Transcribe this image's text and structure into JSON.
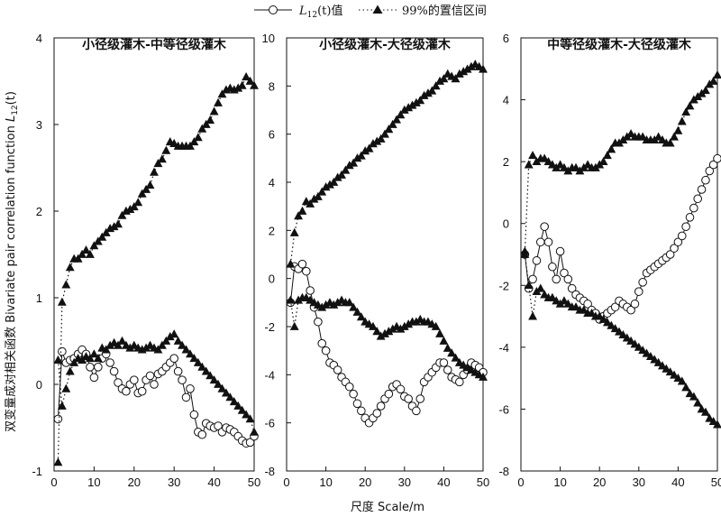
{
  "legend": {
    "observed_label": "L12(t)值",
    "ci_label": "99%的置信区间"
  },
  "x_axis_label": "尺度 Scale/m",
  "y_axis_label": "双变量成对相关函数 Bivariate pair correlation function L12(t)",
  "chart_data": [
    {
      "type": "line",
      "title": "小径级灌木-中等径级灌木",
      "xlim": [
        0,
        50
      ],
      "ylim": [
        -1,
        4
      ],
      "x_ticks": [
        0,
        10,
        20,
        30,
        40,
        50
      ],
      "y_ticks": [
        -1,
        0,
        1,
        2,
        3,
        4
      ],
      "grid": false,
      "series": [
        {
          "name": "L12(t)值",
          "x": [
            1,
            2,
            3,
            4,
            5,
            6,
            7,
            8,
            9,
            10,
            11,
            12,
            13,
            14,
            15,
            16,
            17,
            18,
            19,
            20,
            21,
            22,
            23,
            24,
            25,
            26,
            27,
            28,
            29,
            30,
            31,
            32,
            33,
            34,
            35,
            36,
            37,
            38,
            39,
            40,
            41,
            42,
            43,
            44,
            45,
            46,
            47,
            48,
            49,
            50
          ],
          "y": [
            -0.4,
            0.38,
            0.25,
            0.28,
            0.3,
            0.35,
            0.4,
            0.35,
            0.2,
            0.08,
            0.2,
            0.3,
            0.35,
            0.25,
            0.15,
            0.02,
            -0.05,
            -0.08,
            0.0,
            0.05,
            -0.1,
            -0.08,
            0.05,
            0.1,
            0.0,
            0.12,
            0.15,
            0.2,
            0.25,
            0.3,
            0.15,
            0.05,
            -0.15,
            -0.05,
            -0.35,
            -0.55,
            -0.58,
            -0.45,
            -0.48,
            -0.5,
            -0.48,
            -0.55,
            -0.5,
            -0.52,
            -0.55,
            -0.6,
            -0.65,
            -0.68,
            -0.67,
            -0.6
          ]
        },
        {
          "name": "99%的置信区间 upper",
          "x": [
            1,
            2,
            3,
            4,
            5,
            6,
            7,
            8,
            9,
            10,
            11,
            12,
            13,
            14,
            15,
            16,
            17,
            18,
            19,
            20,
            21,
            22,
            23,
            24,
            25,
            26,
            27,
            28,
            29,
            30,
            31,
            32,
            33,
            34,
            35,
            36,
            37,
            38,
            39,
            40,
            41,
            42,
            43,
            44,
            45,
            46,
            47,
            48,
            49,
            50
          ],
          "y": [
            -0.9,
            0.95,
            1.15,
            1.35,
            1.45,
            1.45,
            1.5,
            1.55,
            1.5,
            1.6,
            1.65,
            1.7,
            1.75,
            1.8,
            1.82,
            1.85,
            1.95,
            2.0,
            2.02,
            2.05,
            2.1,
            2.2,
            2.25,
            2.3,
            2.45,
            2.55,
            2.6,
            2.7,
            2.8,
            2.78,
            2.75,
            2.75,
            2.75,
            2.75,
            2.8,
            2.85,
            2.95,
            3.0,
            3.05,
            3.15,
            3.25,
            3.35,
            3.4,
            3.42,
            3.4,
            3.42,
            3.45,
            3.55,
            3.5,
            3.45
          ]
        },
        {
          "name": "99%的置信区间 lower",
          "x": [
            1,
            2,
            3,
            4,
            5,
            6,
            7,
            8,
            9,
            10,
            11,
            12,
            13,
            14,
            15,
            16,
            17,
            18,
            19,
            20,
            21,
            22,
            23,
            24,
            25,
            26,
            27,
            28,
            29,
            30,
            31,
            32,
            33,
            34,
            35,
            36,
            37,
            38,
            39,
            40,
            41,
            42,
            43,
            44,
            45,
            46,
            47,
            48,
            49,
            50
          ],
          "y": [
            0.28,
            -0.25,
            -0.05,
            0.15,
            0.25,
            0.3,
            0.28,
            0.32,
            0.3,
            0.35,
            0.3,
            0.42,
            0.4,
            0.45,
            0.48,
            0.45,
            0.5,
            0.45,
            0.42,
            0.45,
            0.42,
            0.4,
            0.42,
            0.45,
            0.42,
            0.4,
            0.45,
            0.5,
            0.55,
            0.58,
            0.5,
            0.45,
            0.4,
            0.35,
            0.3,
            0.25,
            0.2,
            0.15,
            0.1,
            0.05,
            0.0,
            -0.05,
            -0.1,
            -0.15,
            -0.2,
            -0.25,
            -0.3,
            -0.35,
            -0.4,
            -0.55
          ]
        }
      ]
    },
    {
      "type": "line",
      "title": "小径级灌木-大径级灌木",
      "xlim": [
        0,
        50
      ],
      "ylim": [
        -8,
        10
      ],
      "x_ticks": [
        0,
        10,
        20,
        30,
        40,
        50
      ],
      "y_ticks": [
        -8,
        -6,
        -4,
        -2,
        0,
        2,
        4,
        6,
        8,
        10
      ],
      "grid": false,
      "series": [
        {
          "name": "L12(t)值",
          "x": [
            1,
            2,
            3,
            4,
            5,
            6,
            7,
            8,
            9,
            10,
            11,
            12,
            13,
            14,
            15,
            16,
            17,
            18,
            19,
            20,
            21,
            22,
            23,
            24,
            25,
            26,
            27,
            28,
            29,
            30,
            31,
            32,
            33,
            34,
            35,
            36,
            37,
            38,
            39,
            40,
            41,
            42,
            43,
            44,
            45,
            46,
            47,
            48,
            49,
            50
          ],
          "y": [
            -1.0,
            0.5,
            0.4,
            0.6,
            0.3,
            -0.5,
            -1.2,
            -1.8,
            -2.7,
            -3.0,
            -3.5,
            -3.6,
            -3.8,
            -4.1,
            -4.3,
            -4.5,
            -4.8,
            -5.2,
            -5.5,
            -5.8,
            -6.0,
            -5.8,
            -5.6,
            -5.3,
            -5.0,
            -4.8,
            -4.5,
            -4.4,
            -4.6,
            -4.9,
            -5.0,
            -5.3,
            -5.5,
            -5.0,
            -4.3,
            -4.1,
            -3.9,
            -3.7,
            -3.5,
            -3.5,
            -3.8,
            -4.1,
            -4.2,
            -4.3,
            -4.0,
            -3.8,
            -3.5,
            -3.6,
            -3.7,
            -3.9
          ]
        },
        {
          "name": "99%的置信区间 upper",
          "x": [
            1,
            2,
            3,
            4,
            5,
            6,
            7,
            8,
            9,
            10,
            11,
            12,
            13,
            14,
            15,
            16,
            17,
            18,
            19,
            20,
            21,
            22,
            23,
            24,
            25,
            26,
            27,
            28,
            29,
            30,
            31,
            32,
            33,
            34,
            35,
            36,
            37,
            38,
            39,
            40,
            41,
            42,
            43,
            44,
            45,
            46,
            47,
            48,
            49,
            50
          ],
          "y": [
            0.6,
            1.9,
            2.6,
            2.8,
            3.2,
            3.1,
            3.3,
            3.4,
            3.6,
            3.8,
            3.9,
            4.0,
            4.2,
            4.3,
            4.5,
            4.7,
            4.8,
            5.0,
            5.1,
            5.3,
            5.4,
            5.6,
            5.7,
            5.8,
            6.0,
            6.2,
            6.4,
            6.6,
            6.8,
            7.0,
            7.1,
            7.2,
            7.3,
            7.4,
            7.6,
            7.7,
            7.8,
            8.0,
            8.2,
            8.3,
            8.5,
            8.4,
            8.3,
            8.5,
            8.6,
            8.7,
            8.8,
            8.9,
            8.8,
            8.7
          ]
        },
        {
          "name": "99%的置信区间 lower",
          "x": [
            1,
            2,
            3,
            4,
            5,
            6,
            7,
            8,
            9,
            10,
            11,
            12,
            13,
            14,
            15,
            16,
            17,
            18,
            19,
            20,
            21,
            22,
            23,
            24,
            25,
            26,
            27,
            28,
            29,
            30,
            31,
            32,
            33,
            34,
            35,
            36,
            37,
            38,
            39,
            40,
            41,
            42,
            43,
            44,
            45,
            46,
            47,
            48,
            49,
            50
          ],
          "y": [
            -0.9,
            -2.0,
            -0.9,
            -0.8,
            -0.8,
            -0.9,
            -1.0,
            -1.1,
            -1.2,
            -1.1,
            -1.0,
            -1.1,
            -1.0,
            -0.9,
            -1.0,
            -1.0,
            -1.2,
            -1.4,
            -1.6,
            -1.8,
            -1.9,
            -2.0,
            -2.2,
            -2.4,
            -2.3,
            -2.2,
            -2.1,
            -2.0,
            -2.1,
            -2.0,
            -1.9,
            -1.8,
            -1.8,
            -1.7,
            -1.8,
            -1.8,
            -1.9,
            -2.0,
            -2.3,
            -2.6,
            -2.9,
            -3.1,
            -3.3,
            -3.5,
            -3.6,
            -3.7,
            -3.8,
            -3.9,
            -4.0,
            -4.1
          ]
        }
      ]
    },
    {
      "type": "line",
      "title": "中等径级灌木-大径级灌木",
      "xlim": [
        0,
        50
      ],
      "ylim": [
        -8,
        6
      ],
      "x_ticks": [
        0,
        10,
        20,
        30,
        40,
        50
      ],
      "y_ticks": [
        -8,
        -6,
        -4,
        -2,
        0,
        2,
        4,
        6
      ],
      "grid": false,
      "series": [
        {
          "name": "L12(t)值",
          "x": [
            1,
            2,
            3,
            4,
            5,
            6,
            7,
            8,
            9,
            10,
            11,
            12,
            13,
            14,
            15,
            16,
            17,
            18,
            19,
            20,
            21,
            22,
            23,
            24,
            25,
            26,
            27,
            28,
            29,
            30,
            31,
            32,
            33,
            34,
            35,
            36,
            37,
            38,
            39,
            40,
            41,
            42,
            43,
            44,
            45,
            46,
            47,
            48,
            49,
            50
          ],
          "y": [
            -1.0,
            -2.1,
            -1.8,
            -1.2,
            -0.6,
            -0.1,
            -0.6,
            -1.4,
            -1.8,
            -0.9,
            -1.6,
            -1.8,
            -2.1,
            -2.3,
            -2.4,
            -2.5,
            -2.6,
            -2.8,
            -2.9,
            -3.1,
            -3.0,
            -2.9,
            -2.8,
            -2.7,
            -2.5,
            -2.6,
            -2.7,
            -2.8,
            -2.6,
            -2.2,
            -1.9,
            -1.6,
            -1.5,
            -1.4,
            -1.3,
            -1.2,
            -1.1,
            -1.0,
            -0.8,
            -0.6,
            -0.4,
            -0.1,
            0.2,
            0.5,
            0.8,
            1.1,
            1.4,
            1.7,
            1.9,
            2.1
          ]
        },
        {
          "name": "99%的置信区间 upper",
          "x": [
            1,
            2,
            3,
            4,
            5,
            6,
            7,
            8,
            9,
            10,
            11,
            12,
            13,
            14,
            15,
            16,
            17,
            18,
            19,
            20,
            21,
            22,
            23,
            24,
            25,
            26,
            27,
            28,
            29,
            30,
            31,
            32,
            33,
            34,
            35,
            36,
            37,
            38,
            39,
            40,
            41,
            42,
            43,
            44,
            45,
            46,
            47,
            48,
            49,
            50
          ],
          "y": [
            -0.9,
            1.9,
            2.2,
            2.0,
            2.1,
            2.1,
            2.0,
            1.9,
            1.8,
            1.9,
            1.8,
            1.7,
            1.8,
            1.8,
            1.7,
            1.8,
            1.9,
            1.8,
            1.8,
            1.9,
            2.0,
            2.2,
            2.4,
            2.6,
            2.6,
            2.7,
            2.8,
            2.9,
            2.8,
            2.8,
            2.8,
            2.7,
            2.7,
            2.7,
            2.8,
            2.7,
            2.6,
            2.6,
            2.8,
            3.0,
            3.3,
            3.6,
            3.8,
            4.0,
            4.1,
            4.2,
            4.3,
            4.5,
            4.6,
            4.8
          ]
        },
        {
          "name": "99%的置信区间 lower",
          "x": [
            1,
            2,
            3,
            4,
            5,
            6,
            7,
            8,
            9,
            10,
            11,
            12,
            13,
            14,
            15,
            16,
            17,
            18,
            19,
            20,
            21,
            22,
            23,
            24,
            25,
            26,
            27,
            28,
            29,
            30,
            31,
            32,
            33,
            34,
            35,
            36,
            37,
            38,
            39,
            40,
            41,
            42,
            43,
            44,
            45,
            46,
            47,
            48,
            49,
            50
          ],
          "y": [
            -1.0,
            -2.0,
            -3.0,
            -2.2,
            -2.1,
            -2.3,
            -2.4,
            -2.4,
            -2.5,
            -2.6,
            -2.5,
            -2.6,
            -2.7,
            -2.7,
            -2.8,
            -2.8,
            -2.9,
            -2.9,
            -3.0,
            -3.0,
            -3.1,
            -3.2,
            -3.3,
            -3.4,
            -3.5,
            -3.6,
            -3.7,
            -3.8,
            -3.9,
            -4.0,
            -4.1,
            -4.2,
            -4.3,
            -4.4,
            -4.5,
            -4.6,
            -4.7,
            -4.8,
            -4.9,
            -5.0,
            -5.1,
            -5.3,
            -5.5,
            -5.6,
            -5.8,
            -6.0,
            -6.1,
            -6.3,
            -6.4,
            -6.5
          ]
        }
      ]
    }
  ]
}
